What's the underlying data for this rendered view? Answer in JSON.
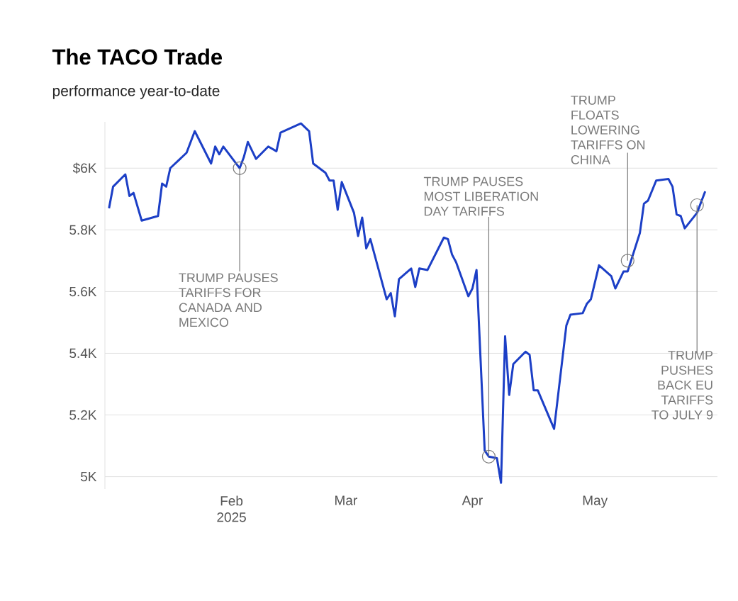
{
  "chart_data": {
    "type": "line",
    "title": "The TACO Trade",
    "subtitle": "performance year-to-date",
    "x": [
      "2025-01-02",
      "2025-01-03",
      "2025-01-06",
      "2025-01-07",
      "2025-01-08",
      "2025-01-10",
      "2025-01-14",
      "2025-01-15",
      "2025-01-16",
      "2025-01-17",
      "2025-01-21",
      "2025-01-23",
      "2025-01-27",
      "2025-01-28",
      "2025-01-29",
      "2025-01-30",
      "2025-02-03",
      "2025-02-04",
      "2025-02-05",
      "2025-02-07",
      "2025-02-10",
      "2025-02-12",
      "2025-02-13",
      "2025-02-18",
      "2025-02-20",
      "2025-02-21",
      "2025-02-24",
      "2025-02-25",
      "2025-02-26",
      "2025-02-27",
      "2025-02-28",
      "2025-03-03",
      "2025-03-04",
      "2025-03-05",
      "2025-03-06",
      "2025-03-07",
      "2025-03-11",
      "2025-03-12",
      "2025-03-13",
      "2025-03-14",
      "2025-03-17",
      "2025-03-18",
      "2025-03-19",
      "2025-03-21",
      "2025-03-25",
      "2025-03-26",
      "2025-03-27",
      "2025-03-28",
      "2025-03-31",
      "2025-04-01",
      "2025-04-02",
      "2025-04-04",
      "2025-04-05",
      "2025-04-07",
      "2025-04-08",
      "2025-04-09",
      "2025-04-10",
      "2025-04-11",
      "2025-04-14",
      "2025-04-15",
      "2025-04-16",
      "2025-04-17",
      "2025-04-21",
      "2025-04-24",
      "2025-04-25",
      "2025-04-28",
      "2025-04-29",
      "2025-04-30",
      "2025-05-02",
      "2025-05-05",
      "2025-05-06",
      "2025-05-08",
      "2025-05-09",
      "2025-05-12",
      "2025-05-13",
      "2025-05-14",
      "2025-05-16",
      "2025-05-19",
      "2025-05-20",
      "2025-05-21",
      "2025-05-22",
      "2025-05-23",
      "2025-05-26",
      "2025-05-28"
    ],
    "series": [
      {
        "color": "#1c3fc6",
        "values": [
          5870,
          5940,
          5980,
          5910,
          5920,
          5830,
          5845,
          5950,
          5940,
          6000,
          6050,
          6120,
          6015,
          6070,
          6045,
          6070,
          6000,
          6035,
          6085,
          6030,
          6070,
          6055,
          6115,
          6145,
          6120,
          6015,
          5985,
          5960,
          5960,
          5865,
          5955,
          5855,
          5780,
          5840,
          5740,
          5770,
          5575,
          5595,
          5520,
          5640,
          5675,
          5615,
          5675,
          5670,
          5775,
          5770,
          5720,
          5695,
          5585,
          5610,
          5670,
          5085,
          5065,
          5060,
          4980,
          5455,
          5265,
          5365,
          5405,
          5395,
          5280,
          5280,
          5155,
          5490,
          5525,
          5530,
          5560,
          5575,
          5685,
          5650,
          5610,
          5665,
          5665,
          5790,
          5885,
          5895,
          5960,
          5965,
          5940,
          5850,
          5845,
          5805,
          5855,
          5925
        ]
      }
    ],
    "xlim": [
      "2025-01-01",
      "2025-05-31"
    ],
    "ylim": [
      4960,
      6150
    ],
    "xticks": [
      {
        "value": "2025-02-01",
        "label": "Feb 2025"
      },
      {
        "value": "2025-03-01",
        "label": "Mar"
      },
      {
        "value": "2025-04-01",
        "label": "Apr"
      },
      {
        "value": "2025-05-01",
        "label": "May"
      }
    ],
    "yticks": [
      {
        "value": 5000,
        "label": "5K"
      },
      {
        "value": 5200,
        "label": "5.2K"
      },
      {
        "value": 5400,
        "label": "5.4K"
      },
      {
        "value": 5600,
        "label": "5.6K"
      },
      {
        "value": 5800,
        "label": "5.8K"
      },
      {
        "value": 6000,
        "label": "$6K"
      }
    ],
    "grid": "y",
    "annotations": [
      {
        "text": "TRUMP PAUSES TARIFFS FOR CANADA AND MEXICO",
        "x": "2025-02-03",
        "y": 6000
      },
      {
        "text": "TRUMP PAUSES MOST LIBERATION DAY TARIFFS",
        "x": "2025-04-05",
        "y": 5065
      },
      {
        "text": "TRUMP FLOATS LOWERING TARIFFS ON CHINA",
        "x": "2025-05-09",
        "y": 5700
      },
      {
        "text": "TRUMP PUSHES BACK EU TARIFFS TO JULY 9",
        "x": "2025-05-26",
        "y": 5880
      }
    ]
  }
}
